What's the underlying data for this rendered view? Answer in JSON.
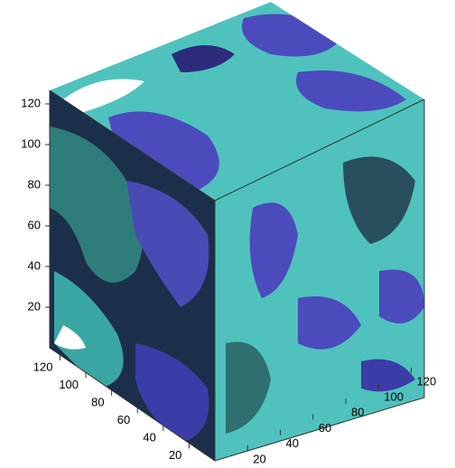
{
  "chart_data": {
    "type": "isosurface",
    "xlim": [
      0,
      128
    ],
    "xticks": [
      20,
      40,
      60,
      80,
      100,
      120
    ],
    "ylim": [
      0,
      128
    ],
    "yticks": [
      20,
      40,
      60,
      80,
      100,
      120
    ],
    "zlim": [
      0,
      128
    ],
    "zticks": [
      20,
      40,
      60,
      80,
      100,
      120
    ]
  }
}
